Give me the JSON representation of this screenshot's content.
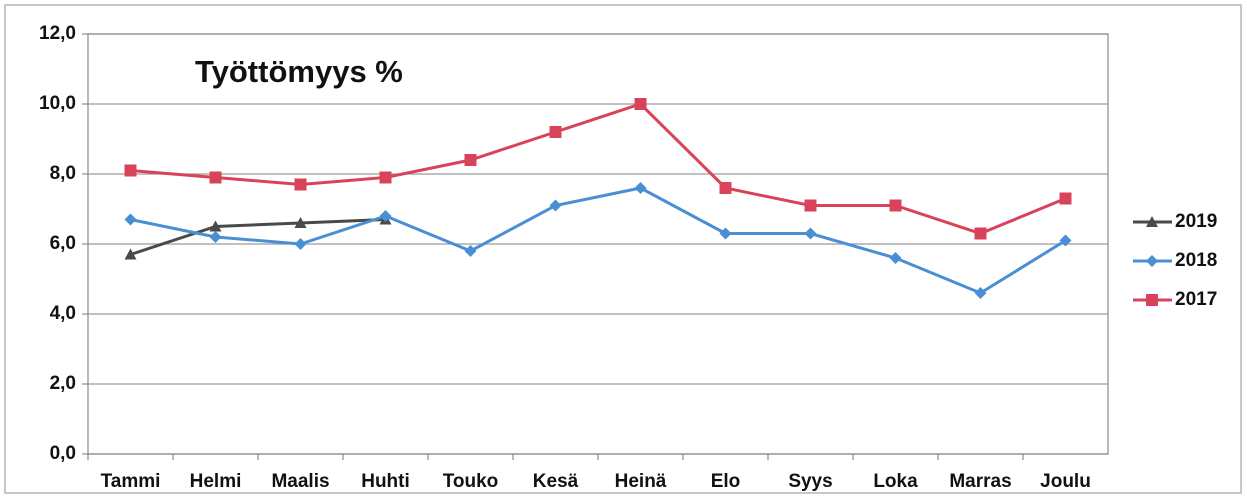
{
  "chart_data": {
    "type": "line",
    "title": "Työttömyys %",
    "categories": [
      "Tammi",
      "Helmi",
      "Maalis",
      "Huhti",
      "Touko",
      "Kesä",
      "Heinä",
      "Elo",
      "Syys",
      "Loka",
      "Marras",
      "Joulu"
    ],
    "series": [
      {
        "name": "2019",
        "color": "#4a4a4a",
        "marker": "triangle",
        "values": [
          5.7,
          6.5,
          6.6,
          6.7,
          null,
          null,
          null,
          null,
          null,
          null,
          null,
          null
        ]
      },
      {
        "name": "2018",
        "color": "#4a8fd4",
        "marker": "diamond",
        "values": [
          6.7,
          6.2,
          6.0,
          6.8,
          5.8,
          7.1,
          7.6,
          6.3,
          6.3,
          5.6,
          4.6,
          6.1
        ]
      },
      {
        "name": "2017",
        "color": "#d9435a",
        "marker": "square",
        "values": [
          8.1,
          7.9,
          7.7,
          7.9,
          8.4,
          9.2,
          10.0,
          7.6,
          7.1,
          7.1,
          6.3,
          7.3
        ]
      }
    ],
    "ylim": [
      0,
      12
    ],
    "yticks": [
      {
        "value": 0,
        "label": "0,0"
      },
      {
        "value": 2,
        "label": "2,0"
      },
      {
        "value": 4,
        "label": "4,0"
      },
      {
        "value": 6,
        "label": "6,0"
      },
      {
        "value": 8,
        "label": "8,0"
      },
      {
        "value": 10,
        "label": "10,0"
      },
      {
        "value": 12,
        "label": "12,0"
      }
    ],
    "grid": true,
    "legend": "right"
  }
}
